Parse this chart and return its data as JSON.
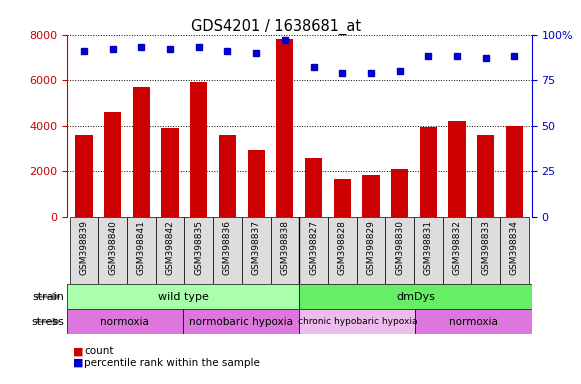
{
  "title": "GDS4201 / 1638681_at",
  "samples": [
    "GSM398839",
    "GSM398840",
    "GSM398841",
    "GSM398842",
    "GSM398835",
    "GSM398836",
    "GSM398837",
    "GSM398838",
    "GSM398827",
    "GSM398828",
    "GSM398829",
    "GSM398830",
    "GSM398831",
    "GSM398832",
    "GSM398833",
    "GSM398834"
  ],
  "counts": [
    3600,
    4600,
    5700,
    3900,
    5900,
    3600,
    2950,
    7800,
    2600,
    1650,
    1850,
    2100,
    3950,
    4200,
    3600,
    4000
  ],
  "percentiles": [
    91,
    92,
    93,
    92,
    93,
    91,
    90,
    97,
    82,
    79,
    79,
    80,
    88,
    88,
    87,
    88
  ],
  "bar_color": "#cc0000",
  "dot_color": "#0000cc",
  "ylim_left": [
    0,
    8000
  ],
  "ylim_right": [
    0,
    100
  ],
  "yticks_left": [
    0,
    2000,
    4000,
    6000,
    8000
  ],
  "yticks_right": [
    0,
    25,
    50,
    75,
    100
  ],
  "strain_groups": [
    {
      "label": "wild type",
      "start": 0,
      "end": 8,
      "color": "#aaffaa"
    },
    {
      "label": "dmDys",
      "start": 8,
      "end": 16,
      "color": "#66ee66"
    }
  ],
  "stress_groups": [
    {
      "label": "normoxia",
      "start": 0,
      "end": 4,
      "color": "#dd77dd"
    },
    {
      "label": "normobaric hypoxia",
      "start": 4,
      "end": 8,
      "color": "#dd77dd"
    },
    {
      "label": "chronic hypobaric hypoxia",
      "start": 8,
      "end": 12,
      "color": "#eebbee"
    },
    {
      "label": "normoxia",
      "start": 12,
      "end": 16,
      "color": "#dd77dd"
    }
  ],
  "left_axis_color": "#cc0000",
  "right_axis_color": "#0000cc",
  "grid_color": "#000000",
  "label_bg_color": "#dddddd"
}
